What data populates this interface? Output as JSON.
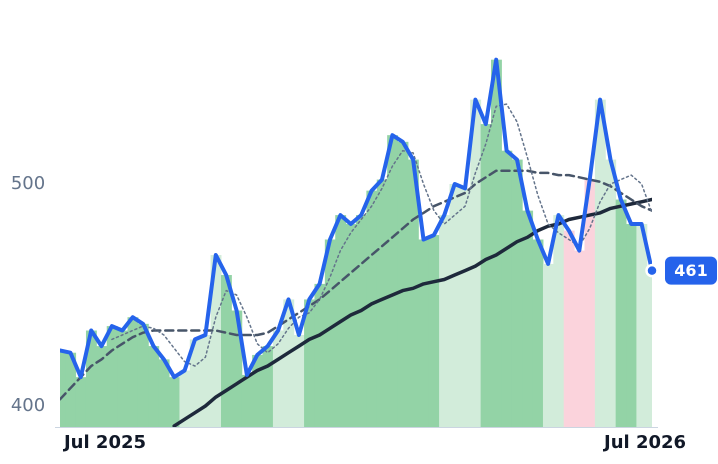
{
  "chart_data": {
    "type": "line",
    "categories": [
      "Jul 2025",
      null,
      null,
      null,
      null,
      null,
      null,
      null,
      null,
      null,
      null,
      null,
      null,
      null,
      null,
      null,
      null,
      null,
      null,
      null,
      null,
      null,
      null,
      null,
      null,
      null,
      null,
      null,
      null,
      null,
      null,
      null,
      null,
      null,
      null,
      null,
      null,
      null,
      null,
      null,
      null,
      null,
      null,
      null,
      null,
      null,
      null,
      null,
      null,
      null,
      null,
      null,
      "Jul 2026",
      null,
      null,
      null,
      null,
      null
    ],
    "ylim": [
      390.5,
      583
    ],
    "yticks": [
      400,
      500
    ],
    "area_colors": [
      "#93d3a6",
      "#93d3a6",
      "#93d3a6",
      "#93d3a6",
      "#93d3a6",
      "#93d3a6",
      "#93d3a6",
      "#93d3a6",
      "#93d3a6",
      "#93d3a6",
      "#93d3a6",
      "#93d3a6",
      "#d2ecda",
      "#d2ecda",
      "#d2ecda",
      "#d2ecda",
      "#93d3a6",
      "#93d3a6",
      "#93d3a6",
      "#93d3a6",
      "#93d3a6",
      "#d2ecda",
      "#d2ecda",
      "#d2ecda",
      "#93d3a6",
      "#93d3a6",
      "#93d3a6",
      "#93d3a6",
      "#93d3a6",
      "#93d3a6",
      "#93d3a6",
      "#93d3a6",
      "#93d3a6",
      "#93d3a6",
      "#93d3a6",
      "#93d3a6",
      "#93d3a6",
      "#d2ecda",
      "#d2ecda",
      "#d2ecda",
      "#d2ecda",
      "#93d3a6",
      "#93d3a6",
      "#93d3a6",
      "#93d3a6",
      "#93d3a6",
      "#93d3a6",
      "#d2ecda",
      "#d2ecda",
      "#fbd3dc",
      "#fbd3dc",
      "#fbd3dc",
      "#d2ecda",
      "#d2ecda",
      "#93d3a6",
      "#93d3a6",
      "#d2ecda",
      "#d2ecda"
    ],
    "series": [
      {
        "color": "#2563eb",
        "values": [
          425,
          424,
          413,
          434,
          427,
          436,
          434,
          440,
          437,
          427,
          421,
          413,
          416,
          430,
          432,
          468,
          459,
          443,
          414,
          423,
          427,
          434,
          448,
          432,
          448,
          455,
          475,
          486,
          482,
          486,
          497,
          502,
          522,
          519,
          511,
          475,
          477,
          486,
          500,
          498,
          538,
          527,
          556,
          515,
          511,
          488,
          475,
          464,
          486,
          479,
          470,
          502,
          538,
          511,
          493,
          482,
          482,
          461
        ]
      },
      {
        "color": "#475569",
        "values": [
          403,
          408,
          413,
          418,
          421,
          425,
          428,
          431,
          433,
          434,
          434,
          434,
          434,
          434,
          434,
          434,
          433,
          432,
          432,
          432,
          433,
          436,
          439,
          442,
          445,
          448,
          452,
          456,
          460,
          464,
          468,
          472,
          476,
          480,
          484,
          487,
          490,
          492,
          494,
          496,
          500,
          503,
          506,
          506,
          506,
          506,
          505,
          505,
          504,
          504,
          503,
          502,
          501,
          499,
          496,
          493,
          490,
          488
        ]
      },
      {
        "color": "#64748b",
        "values": [
          null,
          null,
          null,
          null,
          null,
          430,
          432,
          434,
          436,
          435,
          432,
          426,
          420,
          418,
          422,
          440,
          452,
          450,
          440,
          428,
          424,
          428,
          435,
          440,
          442,
          448,
          458,
          470,
          478,
          484,
          490,
          498,
          508,
          515,
          514,
          500,
          488,
          482,
          486,
          490,
          505,
          518,
          535,
          536,
          528,
          512,
          495,
          482,
          478,
          475,
          472,
          480,
          492,
          500,
          502,
          504,
          500,
          487
        ]
      },
      {
        "color": "#1e293b",
        "values": [
          null,
          null,
          null,
          null,
          null,
          null,
          null,
          null,
          null,
          null,
          null,
          391,
          394,
          397,
          400,
          404,
          407,
          410,
          413,
          416,
          418,
          421,
          424,
          427,
          430,
          432,
          435,
          438,
          441,
          443,
          446,
          448,
          450,
          452,
          453,
          455,
          456,
          457,
          459,
          461,
          463,
          466,
          468,
          471,
          474,
          476,
          479,
          481,
          482,
          484,
          485,
          486,
          487,
          489,
          490,
          491,
          492,
          493
        ]
      }
    ]
  }
}
